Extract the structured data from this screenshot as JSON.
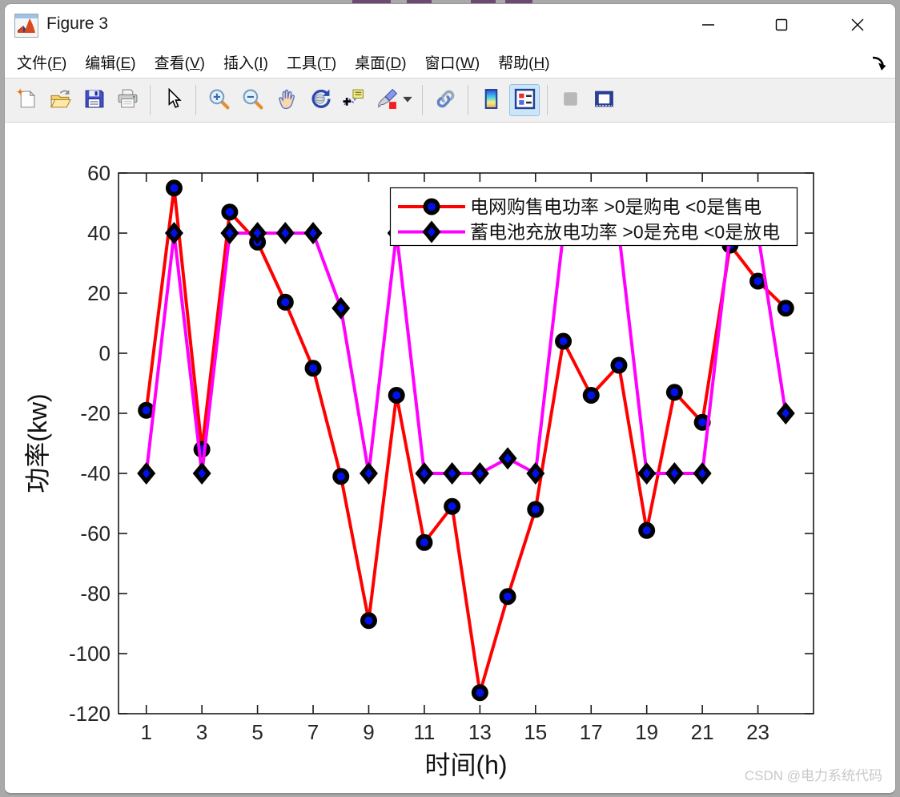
{
  "window": {
    "title": "Figure 3",
    "controls": [
      "minimize",
      "maximize",
      "close"
    ]
  },
  "menu": {
    "items": [
      {
        "id": "file",
        "label": "文件",
        "mnemonic": "F"
      },
      {
        "id": "edit",
        "label": "编辑",
        "mnemonic": "E"
      },
      {
        "id": "view",
        "label": "查看",
        "mnemonic": "V"
      },
      {
        "id": "insert",
        "label": "插入",
        "mnemonic": "I"
      },
      {
        "id": "tools",
        "label": "工具",
        "mnemonic": "T"
      },
      {
        "id": "desktop",
        "label": "桌面",
        "mnemonic": "D"
      },
      {
        "id": "window",
        "label": "窗口",
        "mnemonic": "W"
      },
      {
        "id": "help",
        "label": "帮助",
        "mnemonic": "H"
      }
    ],
    "dock_arrow_icon": "dock-figure-arrow-icon"
  },
  "toolbar": {
    "buttons": [
      {
        "id": "new-figure"
      },
      {
        "id": "open-file"
      },
      {
        "id": "save-figure"
      },
      {
        "id": "print-figure"
      },
      {
        "sep": true
      },
      {
        "id": "edit-plot-pointer"
      },
      {
        "sep": true
      },
      {
        "id": "zoom-in"
      },
      {
        "id": "zoom-out"
      },
      {
        "id": "pan"
      },
      {
        "id": "rotate-3d"
      },
      {
        "id": "data-cursor"
      },
      {
        "id": "brush-data"
      },
      {
        "id": "brush-dropdown",
        "narrow": true
      },
      {
        "sep": true
      },
      {
        "id": "link-plots"
      },
      {
        "sep": true
      },
      {
        "id": "insert-colorbar"
      },
      {
        "id": "insert-legend",
        "state": "active"
      },
      {
        "sep": true
      },
      {
        "id": "hide-plot-tools",
        "state": "disabled"
      },
      {
        "id": "show-plot-tools"
      }
    ]
  },
  "chart_data": {
    "type": "line",
    "x": [
      1,
      2,
      3,
      4,
      5,
      6,
      7,
      8,
      9,
      10,
      11,
      12,
      13,
      14,
      15,
      16,
      17,
      18,
      19,
      20,
      21,
      22,
      23,
      24
    ],
    "series": [
      {
        "name": "电网购售电功率 >0是购电 <0是售电",
        "color": "#ff0000",
        "marker": "circle",
        "marker_edge": "#000000",
        "marker_fill": "#0011ee",
        "values": [
          -19,
          55,
          -32,
          47,
          37,
          17,
          -5,
          -41,
          -89,
          -14,
          -63,
          -51,
          -113,
          -81,
          -52,
          4,
          -14,
          -4,
          -59,
          -13,
          -23,
          36,
          24,
          15
        ]
      },
      {
        "name": "蓄电池充放电功率 >0是充电 <0是放电",
        "color": "#ff00ff",
        "marker": "diamond",
        "marker_edge": "#000000",
        "marker_fill": "#0011ee",
        "values": [
          -40,
          40,
          -40,
          40,
          40,
          40,
          40,
          15,
          -40,
          40,
          -40,
          -40,
          -40,
          -35,
          -40,
          40,
          40,
          40,
          -40,
          -40,
          -40,
          40,
          40,
          -20
        ]
      }
    ],
    "xlabel": "时间(h)",
    "ylabel": "功率(kw)",
    "xlim": [
      0,
      25
    ],
    "ylim": [
      -120,
      60
    ],
    "xticks": [
      1,
      3,
      5,
      7,
      9,
      11,
      13,
      15,
      17,
      19,
      21,
      23
    ],
    "yticks": [
      -120,
      -100,
      -80,
      -60,
      -40,
      -20,
      0,
      20,
      40,
      60
    ],
    "grid": false,
    "legend_position": "top-right-inside",
    "axis_color": "#1a1a1a",
    "tick_label_color": "#262626"
  },
  "watermark": "CSDN @电力系统代码"
}
